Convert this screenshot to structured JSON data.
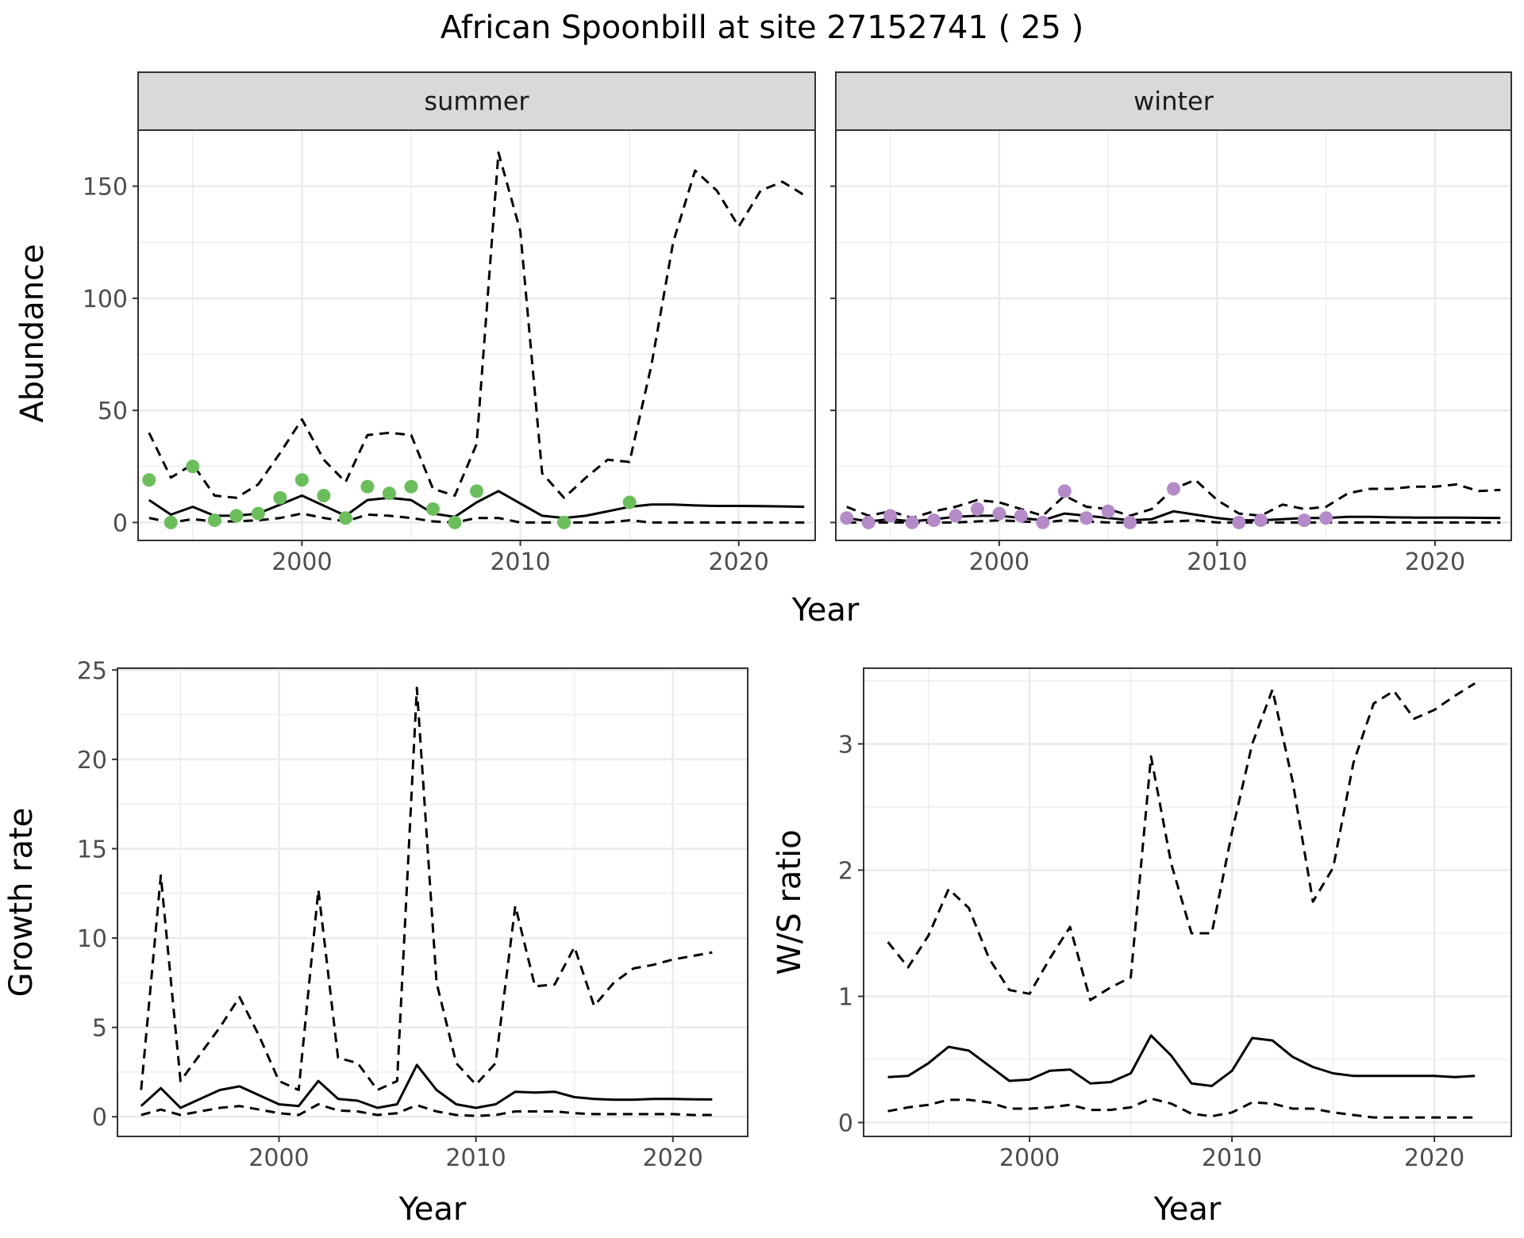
{
  "title": "African Spoonbill at site 27152741 ( 25 )",
  "colors": {
    "summer_points": "#6abf5a",
    "winter_points": "#b48bc8",
    "line": "#000000",
    "strip_fill": "#d9d9d9",
    "grid_major": "#ebebeb",
    "panel_border": "#333333"
  },
  "chart_data": [
    {
      "type": "line",
      "panel": "summer",
      "strip_label": "summer",
      "xlabel": "Year",
      "ylabel": "Abundance",
      "xlim": [
        1992.5,
        2023.5
      ],
      "ylim": [
        -8,
        175
      ],
      "xticks": [
        2000,
        2010,
        2020
      ],
      "yticks": [
        0,
        50,
        100,
        150
      ],
      "x": [
        1993,
        1994,
        1995,
        1996,
        1997,
        1998,
        1999,
        2000,
        2001,
        2002,
        2003,
        2004,
        2005,
        2006,
        2007,
        2008,
        2009,
        2010,
        2011,
        2012,
        2013,
        2014,
        2015,
        2016,
        2017,
        2018,
        2019,
        2020,
        2021,
        2022,
        2023
      ],
      "series": [
        {
          "role": "upper",
          "style": "dashed",
          "values": [
            40,
            20,
            26,
            12,
            11,
            17,
            31,
            46,
            28,
            18,
            39,
            40,
            39,
            15,
            12,
            35,
            165,
            130,
            22,
            11,
            20,
            28,
            27,
            70,
            125,
            157,
            148,
            132,
            148,
            152,
            146
          ]
        },
        {
          "role": "mean",
          "style": "solid",
          "values": [
            10,
            3.5,
            7,
            3,
            3,
            4,
            8,
            12,
            7.5,
            3,
            10,
            11,
            10,
            4,
            2.5,
            9,
            14,
            8.5,
            3,
            2,
            3,
            5,
            7,
            8,
            8,
            7.6,
            7.4,
            7.4,
            7.3,
            7.2,
            7
          ]
        },
        {
          "role": "lower",
          "style": "dashed",
          "values": [
            2,
            0,
            1.5,
            0.5,
            0.5,
            1,
            2,
            4,
            2,
            0.5,
            3.5,
            3,
            2,
            0.5,
            0,
            2,
            2,
            0,
            0,
            0,
            0,
            0,
            1,
            0,
            0,
            0,
            0,
            0,
            0,
            0,
            0
          ]
        }
      ],
      "points": {
        "x": [
          1993,
          1994,
          1995,
          1996,
          1997,
          1998,
          1999,
          2000,
          2001,
          2002,
          2003,
          2004,
          2005,
          2006,
          2007,
          2008,
          2012,
          2015
        ],
        "y": [
          19,
          0,
          25,
          1,
          3,
          4,
          11,
          19,
          12,
          2,
          16,
          13,
          16,
          6,
          0,
          14,
          0,
          9
        ]
      }
    },
    {
      "type": "line",
      "panel": "winter",
      "strip_label": "winter",
      "xlabel": "Year",
      "ylabel": "Abundance",
      "xlim": [
        1992.5,
        2023.5
      ],
      "ylim": [
        -8,
        175
      ],
      "xticks": [
        2000,
        2010,
        2020
      ],
      "yticks": [
        0,
        50,
        100,
        150
      ],
      "x": [
        1993,
        1994,
        1995,
        1996,
        1997,
        1998,
        1999,
        2000,
        2001,
        2002,
        2003,
        2004,
        2005,
        2006,
        2007,
        2008,
        2009,
        2010,
        2011,
        2012,
        2013,
        2014,
        2015,
        2016,
        2017,
        2018,
        2019,
        2020,
        2021,
        2022,
        2023
      ],
      "series": [
        {
          "role": "upper",
          "style": "dashed",
          "values": [
            7,
            3,
            5,
            2,
            5,
            7,
            10,
            9,
            6,
            3,
            12,
            7,
            6,
            3,
            6,
            15,
            19,
            10,
            4,
            3,
            8,
            6,
            7,
            13,
            15,
            15,
            16,
            16,
            17,
            14,
            14.5
          ]
        },
        {
          "role": "mean",
          "style": "solid",
          "values": [
            2,
            0.5,
            1.5,
            0.5,
            1.5,
            2.5,
            3,
            3,
            2,
            1,
            4,
            3,
            2,
            1,
            1.5,
            5,
            3.5,
            2,
            1,
            1,
            1.5,
            2,
            2,
            2.5,
            2.5,
            2.3,
            2.2,
            2.2,
            2.2,
            2.1,
            2
          ]
        },
        {
          "role": "lower",
          "style": "dashed",
          "values": [
            0,
            0,
            0,
            0,
            0,
            0,
            0.5,
            1,
            0.5,
            0,
            1,
            0.5,
            0,
            0,
            0,
            0.5,
            1,
            0,
            0,
            0,
            0,
            0,
            0,
            0,
            0,
            0,
            0,
            0,
            0,
            0,
            0
          ]
        }
      ],
      "points": {
        "x": [
          1993,
          1994,
          1995,
          1996,
          1997,
          1998,
          1999,
          2000,
          2001,
          2002,
          2003,
          2004,
          2005,
          2006,
          2008,
          2011,
          2012,
          2014,
          2015
        ],
        "y": [
          2,
          0,
          3,
          0,
          1,
          3,
          6,
          4,
          3,
          0,
          14,
          2,
          5,
          0,
          15,
          0,
          1,
          1,
          2
        ]
      }
    },
    {
      "type": "line",
      "panel": "growth",
      "xlabel": "Year",
      "ylabel": "Growth rate",
      "xlim": [
        1991.8,
        2023.8
      ],
      "ylim": [
        -1.1,
        25.1
      ],
      "xticks": [
        2000,
        2010,
        2020
      ],
      "yticks": [
        0,
        5,
        10,
        15,
        20,
        25
      ],
      "x": [
        1993,
        1994,
        1995,
        1996,
        1997,
        1998,
        1999,
        2000,
        2001,
        2002,
        2003,
        2004,
        2005,
        2006,
        2007,
        2008,
        2009,
        2010,
        2011,
        2012,
        2013,
        2014,
        2015,
        2016,
        2017,
        2018,
        2019,
        2020,
        2021,
        2022
      ],
      "series": [
        {
          "role": "upper",
          "style": "dashed",
          "values": [
            1.5,
            13.5,
            2,
            3.5,
            5,
            6.7,
            4.5,
            2,
            1.5,
            12.7,
            3.3,
            3,
            1.5,
            2,
            24,
            7.5,
            3,
            1.8,
            3,
            11.8,
            7.3,
            7.4,
            9.5,
            6.2,
            7.5,
            8.3,
            8.5,
            8.8,
            9,
            9.2
          ]
        },
        {
          "role": "mean",
          "style": "solid",
          "values": [
            0.6,
            1.6,
            0.5,
            1,
            1.5,
            1.7,
            1.2,
            0.7,
            0.6,
            2,
            1,
            0.9,
            0.5,
            0.7,
            2.9,
            1.5,
            0.7,
            0.5,
            0.7,
            1.4,
            1.35,
            1.4,
            1.1,
            1,
            0.95,
            0.95,
            1,
            1,
            0.98,
            0.97
          ]
        },
        {
          "role": "lower",
          "style": "dashed",
          "values": [
            0.1,
            0.4,
            0.1,
            0.3,
            0.5,
            0.6,
            0.4,
            0.2,
            0.1,
            0.7,
            0.35,
            0.3,
            0.1,
            0.2,
            0.65,
            0.3,
            0.1,
            0.05,
            0.1,
            0.3,
            0.3,
            0.3,
            0.2,
            0.15,
            0.15,
            0.15,
            0.15,
            0.15,
            0.1,
            0.1
          ]
        }
      ]
    },
    {
      "type": "line",
      "panel": "ratio",
      "xlabel": "Year",
      "ylabel": "W/S ratio",
      "xlim": [
        1991.8,
        2023.8
      ],
      "ylim": [
        -0.11,
        3.6
      ],
      "xticks": [
        2000,
        2010,
        2020
      ],
      "yticks": [
        0,
        1,
        2,
        3
      ],
      "x": [
        1993,
        1994,
        1995,
        1996,
        1997,
        1998,
        1999,
        2000,
        2001,
        2002,
        2003,
        2004,
        2005,
        2006,
        2007,
        2008,
        2009,
        2010,
        2011,
        2012,
        2013,
        2014,
        2015,
        2016,
        2017,
        2018,
        2019,
        2020,
        2021,
        2022
      ],
      "series": [
        {
          "role": "upper",
          "style": "dashed",
          "values": [
            1.43,
            1.23,
            1.48,
            1.85,
            1.7,
            1.3,
            1.05,
            1.02,
            1.3,
            1.55,
            0.97,
            1.07,
            1.15,
            2.9,
            2.05,
            1.5,
            1.5,
            2.3,
            3.0,
            3.43,
            2.7,
            1.75,
            2.02,
            2.85,
            3.32,
            3.42,
            3.2,
            3.27,
            3.38,
            3.48
          ]
        },
        {
          "role": "mean",
          "style": "solid",
          "values": [
            0.36,
            0.37,
            0.47,
            0.6,
            0.57,
            0.45,
            0.33,
            0.34,
            0.41,
            0.42,
            0.31,
            0.32,
            0.39,
            0.69,
            0.53,
            0.31,
            0.29,
            0.41,
            0.67,
            0.65,
            0.52,
            0.44,
            0.39,
            0.37,
            0.37,
            0.37,
            0.37,
            0.37,
            0.36,
            0.37
          ]
        },
        {
          "role": "lower",
          "style": "dashed",
          "values": [
            0.09,
            0.12,
            0.14,
            0.18,
            0.18,
            0.16,
            0.11,
            0.11,
            0.12,
            0.14,
            0.1,
            0.1,
            0.12,
            0.19,
            0.15,
            0.07,
            0.05,
            0.08,
            0.16,
            0.15,
            0.11,
            0.11,
            0.08,
            0.06,
            0.04,
            0.04,
            0.04,
            0.04,
            0.04,
            0.04
          ]
        }
      ]
    }
  ]
}
